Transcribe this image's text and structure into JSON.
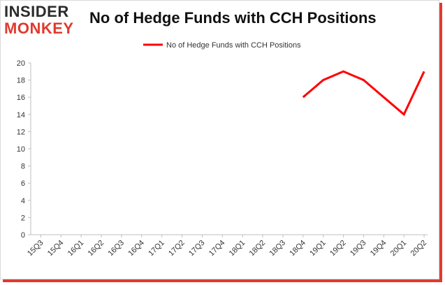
{
  "brand": {
    "logo_line1": "INSIDER",
    "logo_line2": "MONKEY"
  },
  "chart_data": {
    "type": "line",
    "title": "No of Hedge Funds with CCH Positions",
    "xlabel": "",
    "ylabel": "",
    "categories": [
      "15Q3",
      "15Q4",
      "16Q1",
      "16Q2",
      "16Q3",
      "16Q4",
      "17Q1",
      "17Q2",
      "17Q3",
      "17Q4",
      "18Q1",
      "18Q2",
      "18Q3",
      "18Q4",
      "19Q1",
      "19Q2",
      "19Q3",
      "19Q4",
      "20Q1",
      "20Q2"
    ],
    "series": [
      {
        "name": "No of Hedge Funds with CCH Positions",
        "color": "#ff0000",
        "values": [
          null,
          null,
          null,
          null,
          null,
          null,
          null,
          null,
          null,
          null,
          null,
          null,
          null,
          16,
          18,
          19,
          18,
          16,
          14,
          19
        ]
      }
    ],
    "ylim": [
      0,
      20
    ],
    "yticks": [
      0,
      2,
      4,
      6,
      8,
      10,
      12,
      14,
      16,
      18,
      20
    ],
    "grid": false,
    "legend_position": "top-center"
  }
}
